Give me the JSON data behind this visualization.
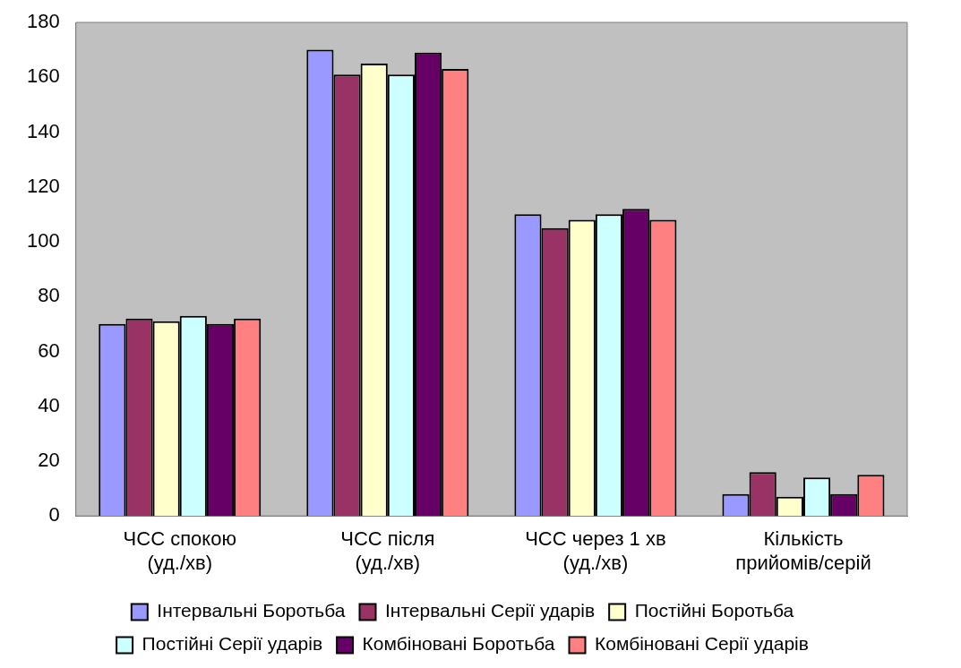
{
  "chart_data": {
    "type": "bar",
    "categories": [
      "ЧСС спокою\n(уд./хв)",
      "ЧСС після\n(уд./хв)",
      "ЧСС через 1 хв\n(уд./хв)",
      "Кількість\nприйомів/серій"
    ],
    "series": [
      {
        "name": "Інтервальні Боротьба",
        "color": "#9999ff",
        "values": [
          70,
          170,
          110,
          8
        ]
      },
      {
        "name": "Інтервальні Серії ударів",
        "color": "#993366",
        "values": [
          72,
          161,
          105,
          16
        ]
      },
      {
        "name": "Постійні Боротьба",
        "color": "#ffffcc",
        "values": [
          71,
          165,
          108,
          7
        ]
      },
      {
        "name": "Постійні Серії ударів",
        "color": "#ccffff",
        "values": [
          73,
          161,
          110,
          14
        ]
      },
      {
        "name": "Комбіновані Боротьба",
        "color": "#660066",
        "values": [
          70,
          169,
          112,
          8
        ]
      },
      {
        "name": "Комбіновані Серії ударів",
        "color": "#ff8080",
        "values": [
          72,
          163,
          108,
          15
        ]
      }
    ],
    "ylim": [
      0,
      180
    ],
    "yticks": [
      0,
      20,
      40,
      60,
      80,
      100,
      120,
      140,
      160,
      180
    ],
    "grid": false,
    "legend": "bottom"
  }
}
